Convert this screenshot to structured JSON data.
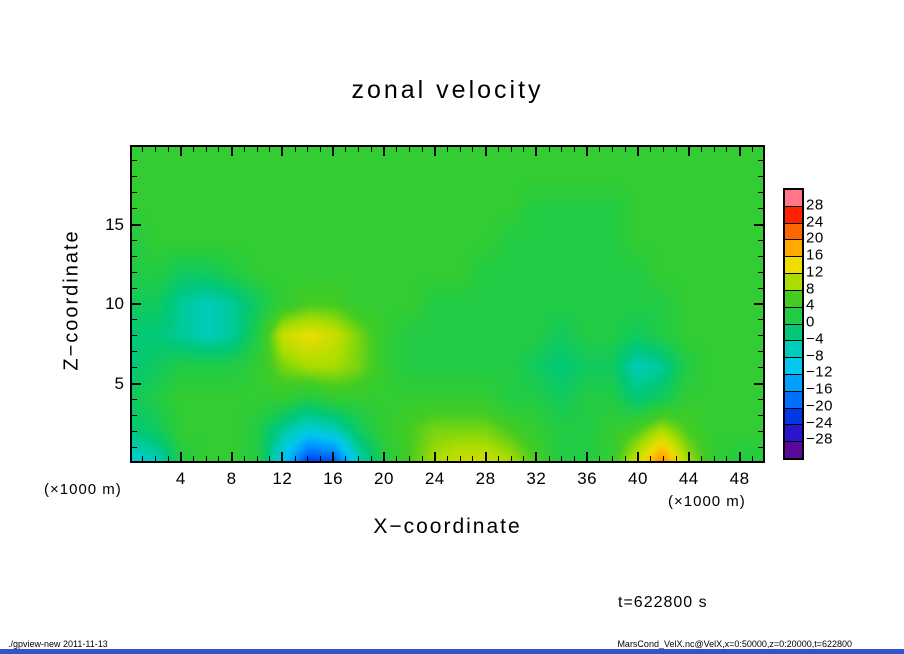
{
  "title": "zonal velocity",
  "axes": {
    "x_label": "X−coordinate",
    "y_label": "Z−coordinate",
    "x_unit": "(×1000 m)",
    "y_unit": "(×1000 m)",
    "x_ticks": [
      4,
      8,
      12,
      16,
      20,
      24,
      28,
      32,
      36,
      40,
      44,
      48
    ],
    "y_ticks": [
      5,
      10,
      15
    ]
  },
  "annotations": {
    "time_label": "t=622800 s"
  },
  "footer": {
    "left": "./gpview-new  2011-11-13",
    "right": "MarsCond_VelX.nc@VelX,x=0:50000,z=0:20000,t=622800"
  },
  "colorbar": {
    "labels": [
      "28",
      "24",
      "20",
      "16",
      "12",
      "8",
      "4",
      "0",
      "−4",
      "−8",
      "−12",
      "−16",
      "−20",
      "−24",
      "−28"
    ],
    "stops": [
      {
        "v": -30,
        "c": "#5a0a9a"
      },
      {
        "v": -26,
        "c": "#2a14cc"
      },
      {
        "v": -22,
        "c": "#0038e8"
      },
      {
        "v": -18,
        "c": "#0070ff"
      },
      {
        "v": -14,
        "c": "#00a0ff"
      },
      {
        "v": -10,
        "c": "#00c8ee"
      },
      {
        "v": -6,
        "c": "#00ccbb"
      },
      {
        "v": -2,
        "c": "#00c878"
      },
      {
        "v": 2,
        "c": "#22cc44"
      },
      {
        "v": 6,
        "c": "#44cc22"
      },
      {
        "v": 10,
        "c": "#aadd00"
      },
      {
        "v": 14,
        "c": "#eedd00"
      },
      {
        "v": 18,
        "c": "#ffaa00"
      },
      {
        "v": 22,
        "c": "#ff6600"
      },
      {
        "v": 26,
        "c": "#ff2200"
      },
      {
        "v": 30,
        "c": "#ff7788"
      }
    ]
  },
  "chart_data": {
    "type": "heatmap",
    "title": "zonal velocity",
    "xlabel": "X−coordinate (×1000 m)",
    "ylabel": "Z−coordinate (×1000 m)",
    "xlim": [
      0,
      50
    ],
    "zlim": [
      0,
      20
    ],
    "vmin": -30,
    "vmax": 30,
    "legend_position": "right-colorbar",
    "x": [
      0,
      2,
      4,
      6,
      8,
      10,
      12,
      14,
      16,
      18,
      20,
      22,
      24,
      26,
      28,
      30,
      32,
      34,
      36,
      38,
      40,
      42,
      44,
      46,
      48,
      50
    ],
    "z": [
      0,
      2,
      4,
      6,
      8,
      10,
      12,
      14,
      16,
      18,
      20
    ],
    "values": [
      [
        -8,
        -6,
        2,
        4,
        4,
        2,
        -10,
        -22,
        -20,
        -6,
        2,
        6,
        10,
        12,
        12,
        10,
        6,
        2,
        2,
        4,
        12,
        20,
        10,
        4,
        2,
        2
      ],
      [
        -2,
        0,
        4,
        4,
        4,
        2,
        -4,
        -8,
        -6,
        0,
        4,
        6,
        8,
        8,
        8,
        6,
        4,
        2,
        2,
        4,
        6,
        10,
        6,
        4,
        4,
        4
      ],
      [
        0,
        2,
        4,
        4,
        4,
        4,
        4,
        2,
        4,
        4,
        4,
        4,
        4,
        4,
        4,
        2,
        2,
        0,
        2,
        2,
        -2,
        0,
        4,
        4,
        4,
        4
      ],
      [
        -2,
        0,
        2,
        2,
        2,
        4,
        8,
        10,
        10,
        8,
        4,
        2,
        2,
        2,
        2,
        2,
        0,
        -2,
        0,
        0,
        -6,
        -4,
        2,
        4,
        4,
        4
      ],
      [
        -2,
        -2,
        -4,
        -6,
        -4,
        2,
        12,
        14,
        12,
        8,
        4,
        2,
        2,
        2,
        2,
        2,
        2,
        0,
        2,
        2,
        0,
        2,
        4,
        4,
        4,
        4
      ],
      [
        0,
        0,
        -4,
        -6,
        -4,
        0,
        4,
        6,
        6,
        4,
        4,
        4,
        2,
        2,
        2,
        2,
        2,
        2,
        2,
        2,
        2,
        2,
        4,
        4,
        4,
        4
      ],
      [
        2,
        2,
        0,
        0,
        2,
        4,
        4,
        4,
        4,
        4,
        4,
        4,
        4,
        4,
        2,
        2,
        2,
        2,
        2,
        2,
        2,
        4,
        4,
        4,
        4,
        4
      ],
      [
        2,
        4,
        4,
        4,
        4,
        4,
        4,
        4,
        4,
        4,
        4,
        4,
        4,
        4,
        4,
        2,
        2,
        2,
        2,
        2,
        4,
        4,
        4,
        4,
        4,
        4
      ],
      [
        4,
        4,
        4,
        4,
        4,
        4,
        4,
        4,
        4,
        4,
        4,
        4,
        4,
        4,
        4,
        4,
        2,
        2,
        2,
        2,
        4,
        4,
        4,
        4,
        4,
        4
      ],
      [
        4,
        4,
        4,
        4,
        4,
        4,
        4,
        4,
        4,
        4,
        4,
        4,
        4,
        4,
        4,
        4,
        4,
        4,
        4,
        4,
        4,
        4,
        4,
        4,
        4,
        4
      ],
      [
        4,
        4,
        4,
        4,
        4,
        4,
        4,
        4,
        4,
        4,
        4,
        4,
        4,
        4,
        4,
        4,
        4,
        4,
        4,
        4,
        4,
        4,
        4,
        4,
        4,
        4
      ]
    ]
  }
}
